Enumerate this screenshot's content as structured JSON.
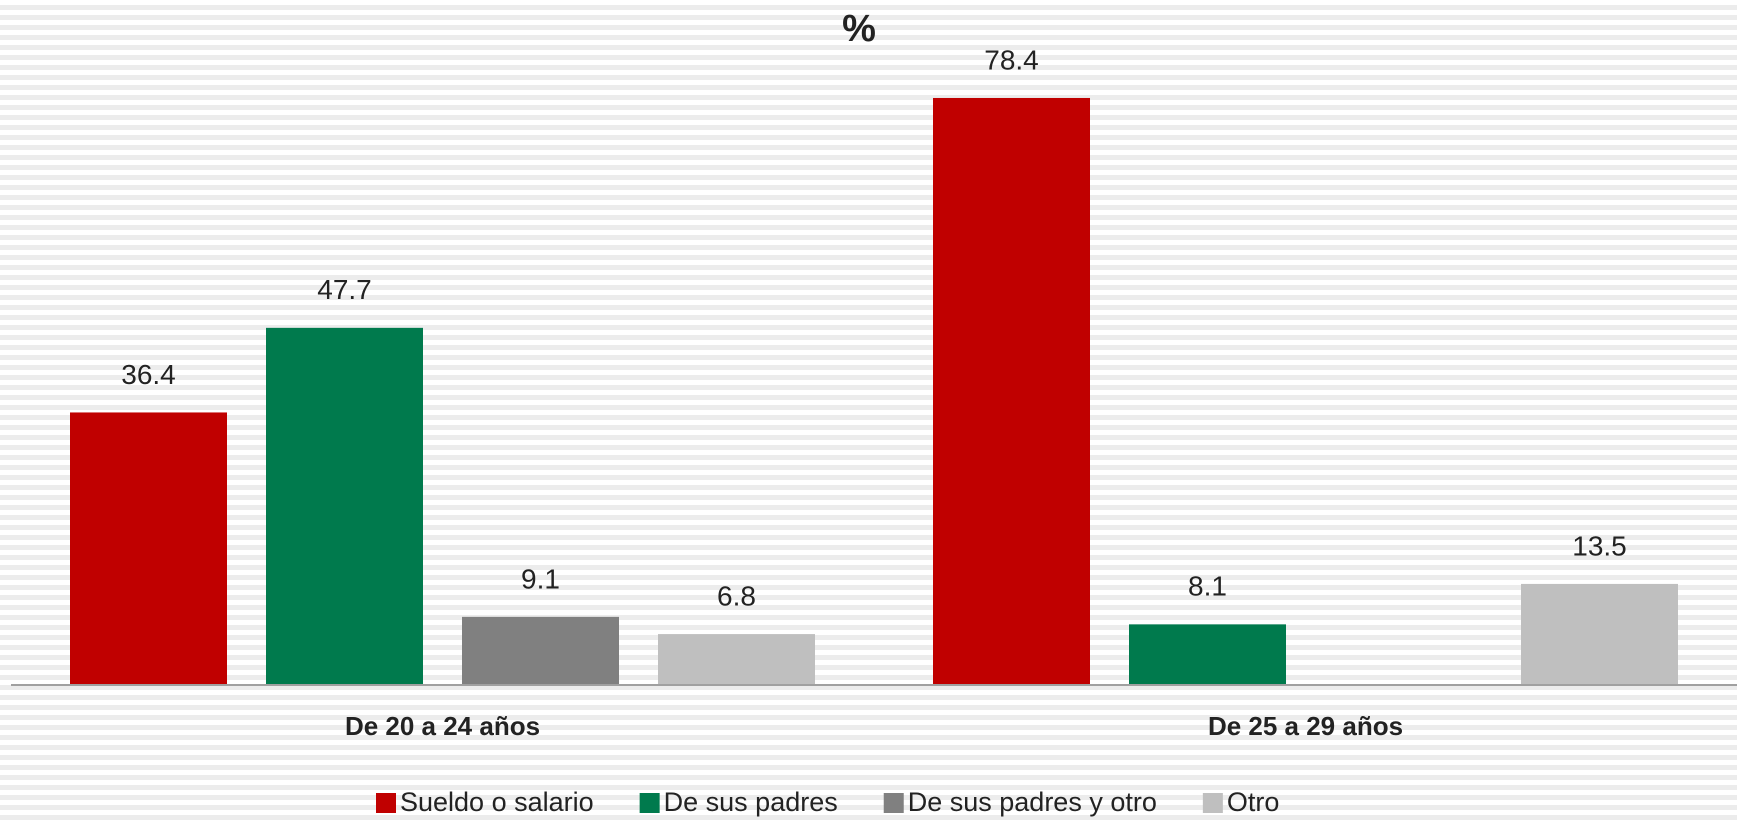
{
  "chart_data": {
    "type": "bar",
    "title": "%",
    "categories": [
      "De 20 a 24 años",
      "De 25 a 29 años"
    ],
    "series": [
      {
        "name": "Sueldo o salario",
        "color": "#c00000",
        "values": [
          36.4,
          78.4
        ]
      },
      {
        "name": "De sus padres",
        "color": "#007a4d",
        "values": [
          47.7,
          8.1
        ]
      },
      {
        "name": "De sus padres y otro",
        "color": "#808080",
        "values": [
          9.1,
          null
        ]
      },
      {
        "name": "Otro",
        "color": "#bfbfbf",
        "values": [
          6.8,
          13.5
        ]
      }
    ],
    "ylim": [
      0,
      80
    ],
    "legend": "bottom"
  }
}
